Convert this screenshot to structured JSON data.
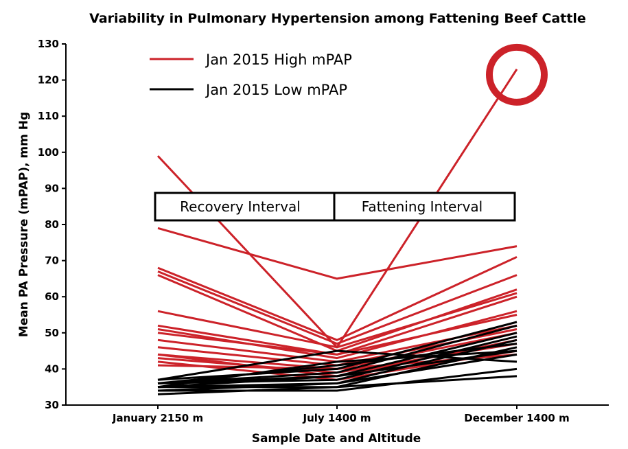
{
  "chart_data": {
    "type": "line",
    "title": "Variability in Pulmonary Hypertension among Fattening Beef Cattle",
    "xlabel": "Sample Date and Altitude",
    "ylabel": "Mean PA Pressure (mPAP), mm  Hg",
    "categories": [
      "January 2150 m",
      "July 1400 m",
      "December 1400 m"
    ],
    "ylim": [
      30,
      130
    ],
    "yticks": [
      30,
      40,
      50,
      60,
      70,
      80,
      90,
      100,
      110,
      120,
      130
    ],
    "grid": false,
    "legend_position": "top-left",
    "colors": {
      "high": "#cc2229",
      "low": "#000000"
    },
    "series": [
      {
        "name": "Jan 2015 High mPAP",
        "group": "high",
        "values": [
          99,
          46,
          123
        ]
      },
      {
        "name": "",
        "group": "high",
        "values": [
          79,
          65,
          74
        ]
      },
      {
        "name": "",
        "group": "high",
        "values": [
          68,
          48,
          71
        ]
      },
      {
        "name": "",
        "group": "high",
        "values": [
          67,
          47,
          66
        ]
      },
      {
        "name": "",
        "group": "high",
        "values": [
          66,
          45,
          62
        ]
      },
      {
        "name": "",
        "group": "high",
        "values": [
          56,
          46,
          61
        ]
      },
      {
        "name": "",
        "group": "high",
        "values": [
          52,
          44,
          60
        ]
      },
      {
        "name": "",
        "group": "high",
        "values": [
          51,
          43,
          56
        ]
      },
      {
        "name": "",
        "group": "high",
        "values": [
          50,
          44,
          55
        ]
      },
      {
        "name": "",
        "group": "high",
        "values": [
          48,
          42,
          52
        ]
      },
      {
        "name": "",
        "group": "high",
        "values": [
          46,
          41,
          51
        ]
      },
      {
        "name": "",
        "group": "high",
        "values": [
          44,
          40,
          50
        ]
      },
      {
        "name": "",
        "group": "high",
        "values": [
          44,
          38,
          48
        ]
      },
      {
        "name": "",
        "group": "high",
        "values": [
          43,
          39,
          47
        ]
      },
      {
        "name": "",
        "group": "high",
        "values": [
          42,
          37,
          45
        ]
      },
      {
        "name": "",
        "group": "high",
        "values": [
          41,
          40,
          44
        ]
      },
      {
        "name": "Jan 2015 Low mPAP",
        "group": "low",
        "values": [
          37,
          45,
          42
        ]
      },
      {
        "name": "",
        "group": "low",
        "values": [
          37,
          40,
          53
        ]
      },
      {
        "name": "",
        "group": "low",
        "values": [
          36,
          39,
          52
        ]
      },
      {
        "name": "",
        "group": "low",
        "values": [
          36,
          38,
          50
        ]
      },
      {
        "name": "",
        "group": "low",
        "values": [
          36,
          37,
          49
        ]
      },
      {
        "name": "",
        "group": "low",
        "values": [
          35,
          36,
          48
        ]
      },
      {
        "name": "",
        "group": "low",
        "values": [
          35,
          35,
          46
        ]
      },
      {
        "name": "",
        "group": "low",
        "values": [
          35,
          38,
          45
        ]
      },
      {
        "name": "",
        "group": "low",
        "values": [
          34,
          36,
          44
        ]
      },
      {
        "name": "",
        "group": "low",
        "values": [
          34,
          34,
          40
        ]
      },
      {
        "name": "",
        "group": "low",
        "values": [
          33,
          35,
          38
        ]
      },
      {
        "name": "",
        "group": "low",
        "values": [
          36,
          41,
          47
        ]
      },
      {
        "name": "",
        "group": "low",
        "values": [
          35,
          42,
          45
        ]
      }
    ],
    "annotations": {
      "intervals": [
        "Recovery Interval",
        "Fattening Interval"
      ],
      "highlight": {
        "category_index": 2,
        "value": 123
      }
    }
  }
}
